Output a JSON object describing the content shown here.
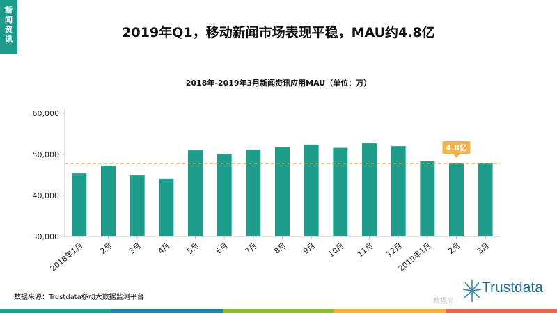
{
  "side_tag": [
    "新",
    "闻",
    "资",
    "讯"
  ],
  "title": "2019年Q1，移动新闻市场表现平稳，MAU约4.8亿",
  "footer": {
    "source": "数据来源：Trustdata移动大数据监测平台",
    "brand": "Trustdata",
    "watermark": "数据局"
  },
  "colors": {
    "bar": "#1f9d8c",
    "reference_line": "#e8a02a",
    "callout": "#f2b24a",
    "bottom_bar": [
      "#1f9d8c",
      "#2b7fa8",
      "#8dbb3d",
      "#f2b24a",
      "#e06a4f"
    ]
  },
  "chart_data": {
    "type": "bar",
    "title": "2018年-2019年3月新闻资讯应用MAU（单位：万）",
    "categories": [
      "2018年1月",
      "2月",
      "3月",
      "4月",
      "5月",
      "6月",
      "7月",
      "8月",
      "9月",
      "10月",
      "11月",
      "12月",
      "2019年1月",
      "2月",
      "3月"
    ],
    "values": [
      45400,
      47300,
      44900,
      44100,
      51000,
      50100,
      51200,
      51700,
      52400,
      51600,
      52700,
      52000,
      48300,
      47800,
      47900
    ],
    "ylim": [
      30000,
      60000
    ],
    "yticks": [
      30000,
      40000,
      50000,
      60000
    ],
    "ytick_labels": [
      "30,000",
      "40,000",
      "50,000",
      "60,000"
    ],
    "reference_line": 47800,
    "callout": {
      "text": "4.8亿",
      "category_index": 13
    }
  }
}
